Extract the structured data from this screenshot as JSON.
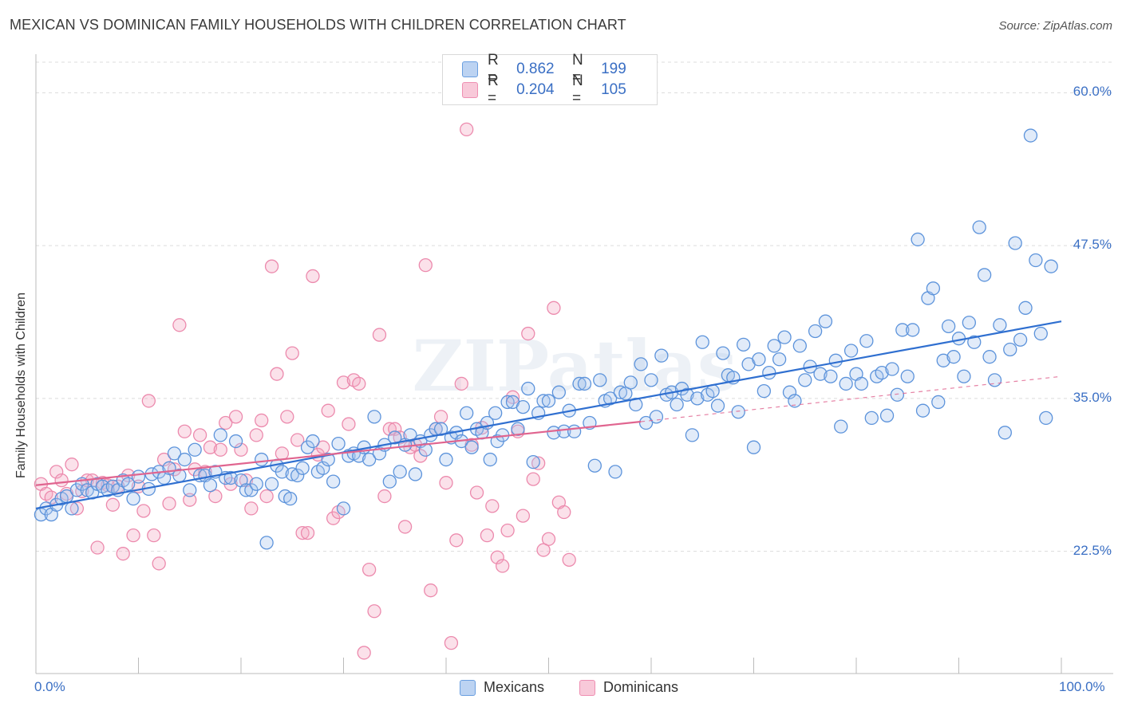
{
  "title": "MEXICAN VS DOMINICAN FAMILY HOUSEHOLDS WITH CHILDREN CORRELATION CHART",
  "source": "Source: ZipAtlas.com",
  "watermark": "ZIPatlas",
  "legend": {
    "r_label": "R =",
    "n_label": "N =",
    "rows": [
      {
        "r": "0.862",
        "n": "199"
      },
      {
        "r": "0.204",
        "n": "105"
      }
    ]
  },
  "chart_data": {
    "type": "scatter",
    "xlabel": "",
    "ylabel": "Family Households with Children",
    "xlim": [
      0,
      100
    ],
    "ylim": [
      12.5,
      62.5
    ],
    "x_tick_labels": [
      "0.0%",
      "100.0%"
    ],
    "y_ticks": [
      22.5,
      35.0,
      47.5,
      60.0
    ],
    "y_tick_labels": [
      "22.5%",
      "35.0%",
      "47.5%",
      "60.0%"
    ],
    "grid": true,
    "legend_position": "top-center",
    "colors": {
      "Mexicans": "#6a9fe0",
      "Dominicans": "#ef8fb2",
      "Mexicans_line": "#2f6fd0",
      "Dominicans_line": "#e0648f"
    },
    "series": [
      {
        "name": "Mexicans",
        "trend": {
          "x": [
            0,
            100
          ],
          "y": [
            26.0,
            41.3
          ]
        },
        "points": [
          [
            0.5,
            25.5
          ],
          [
            1,
            26
          ],
          [
            1.5,
            25.5
          ],
          [
            2,
            26.3
          ],
          [
            2.5,
            26.8
          ],
          [
            3,
            27
          ],
          [
            3.5,
            26
          ],
          [
            4,
            27.5
          ],
          [
            4.5,
            28
          ],
          [
            5,
            27.5
          ],
          [
            5.5,
            27.3
          ],
          [
            6,
            28
          ],
          [
            6.5,
            27.8
          ],
          [
            7,
            27.5
          ],
          [
            7.5,
            27.8
          ],
          [
            8,
            27.5
          ],
          [
            8.5,
            28.3
          ],
          [
            9,
            28
          ],
          [
            9.5,
            26.8
          ],
          [
            10,
            28.6
          ],
          [
            11,
            27.6
          ],
          [
            11.3,
            28.8
          ],
          [
            12,
            29
          ],
          [
            12.5,
            28.5
          ],
          [
            13,
            29.3
          ],
          [
            13.5,
            30.5
          ],
          [
            14,
            28.7
          ],
          [
            14.5,
            30
          ],
          [
            15,
            27.5
          ],
          [
            15.5,
            30.8
          ],
          [
            16,
            28.7
          ],
          [
            16.5,
            28.7
          ],
          [
            17,
            27.9
          ],
          [
            17.5,
            29
          ],
          [
            18,
            32
          ],
          [
            18.5,
            28.5
          ],
          [
            19,
            28.5
          ],
          [
            19.5,
            31.5
          ],
          [
            20,
            28.3
          ],
          [
            20.5,
            27.5
          ],
          [
            21,
            27.5
          ],
          [
            21.5,
            28
          ],
          [
            22,
            30
          ],
          [
            22.5,
            23.2
          ],
          [
            23,
            28
          ],
          [
            23.5,
            29.5
          ],
          [
            24,
            29
          ],
          [
            24.3,
            27
          ],
          [
            24.8,
            26.8
          ],
          [
            25,
            28.8
          ],
          [
            25.5,
            28.7
          ],
          [
            26,
            29.3
          ],
          [
            26.5,
            31
          ],
          [
            27,
            31.5
          ],
          [
            27.5,
            29
          ],
          [
            28,
            29.3
          ],
          [
            28.5,
            30
          ],
          [
            29,
            28.2
          ],
          [
            29.5,
            31.3
          ],
          [
            30,
            26
          ],
          [
            30.5,
            30.3
          ],
          [
            31,
            30.5
          ],
          [
            31.5,
            30.3
          ],
          [
            32,
            31
          ],
          [
            32.5,
            30
          ],
          [
            33,
            33.5
          ],
          [
            33.5,
            30.5
          ],
          [
            34,
            31.2
          ],
          [
            34.5,
            28.2
          ],
          [
            35,
            31.8
          ],
          [
            35.5,
            29
          ],
          [
            36,
            31.2
          ],
          [
            36.5,
            32
          ],
          [
            37,
            28.8
          ],
          [
            37.5,
            31.5
          ],
          [
            38,
            30.8
          ],
          [
            38.5,
            32
          ],
          [
            39,
            32.5
          ],
          [
            39.5,
            32.5
          ],
          [
            40,
            30
          ],
          [
            40.5,
            31.8
          ],
          [
            41,
            32.2
          ],
          [
            41.5,
            31.5
          ],
          [
            42,
            33.8
          ],
          [
            42.5,
            31
          ],
          [
            43,
            32.5
          ],
          [
            43.5,
            32.2
          ],
          [
            44,
            33
          ],
          [
            44.3,
            30
          ],
          [
            44.8,
            33.8
          ],
          [
            45,
            31.5
          ],
          [
            45.5,
            32
          ],
          [
            46,
            34.7
          ],
          [
            46.5,
            34.7
          ],
          [
            47,
            32.5
          ],
          [
            47.5,
            34.3
          ],
          [
            48,
            35.8
          ],
          [
            48.5,
            29.8
          ],
          [
            49,
            33.8
          ],
          [
            49.5,
            34.8
          ],
          [
            50,
            34.8
          ],
          [
            50.5,
            32.2
          ],
          [
            51,
            35.5
          ],
          [
            51.5,
            32.3
          ],
          [
            52,
            34
          ],
          [
            52.5,
            32.3
          ],
          [
            53,
            36.2
          ],
          [
            53.5,
            36.2
          ],
          [
            54,
            33
          ],
          [
            54.5,
            29.5
          ],
          [
            55,
            36.5
          ],
          [
            55.5,
            34.8
          ],
          [
            56,
            35
          ],
          [
            56.5,
            29
          ],
          [
            57,
            35.5
          ],
          [
            57.5,
            35.4
          ],
          [
            58,
            36.3
          ],
          [
            58.5,
            34.5
          ],
          [
            59,
            37.8
          ],
          [
            59.5,
            33
          ],
          [
            60,
            36.5
          ],
          [
            60.5,
            33.5
          ],
          [
            61,
            38.5
          ],
          [
            61.5,
            35.3
          ],
          [
            62,
            35.5
          ],
          [
            62.5,
            34.5
          ],
          [
            63,
            35.8
          ],
          [
            63.5,
            35.3
          ],
          [
            64,
            32
          ],
          [
            64.5,
            35
          ],
          [
            65,
            39.6
          ],
          [
            65.5,
            35.3
          ],
          [
            66,
            35.6
          ],
          [
            66.5,
            34.4
          ],
          [
            67,
            38.7
          ],
          [
            67.5,
            36.9
          ],
          [
            68,
            36.7
          ],
          [
            68.5,
            33.9
          ],
          [
            69,
            39.4
          ],
          [
            69.5,
            37.8
          ],
          [
            70,
            31
          ],
          [
            70.5,
            38.2
          ],
          [
            71,
            35.6
          ],
          [
            71.5,
            37.1
          ],
          [
            72,
            39.3
          ],
          [
            72.5,
            38.2
          ],
          [
            73,
            40
          ],
          [
            73.5,
            35.5
          ],
          [
            74,
            34.8
          ],
          [
            74.5,
            39.3
          ],
          [
            75,
            36.5
          ],
          [
            75.5,
            37.6
          ],
          [
            76,
            40.5
          ],
          [
            76.5,
            37
          ],
          [
            77,
            41.3
          ],
          [
            77.5,
            36.8
          ],
          [
            78,
            38.1
          ],
          [
            78.5,
            32.7
          ],
          [
            79,
            36.2
          ],
          [
            79.5,
            38.9
          ],
          [
            80,
            37
          ],
          [
            80.5,
            36.2
          ],
          [
            81,
            39.7
          ],
          [
            81.5,
            33.4
          ],
          [
            82,
            36.8
          ],
          [
            82.5,
            37.1
          ],
          [
            83,
            33.6
          ],
          [
            83.5,
            37.4
          ],
          [
            84,
            35.3
          ],
          [
            84.5,
            40.6
          ],
          [
            85,
            36.8
          ],
          [
            85.5,
            40.6
          ],
          [
            86,
            48
          ],
          [
            86.5,
            34
          ],
          [
            87,
            43.2
          ],
          [
            87.5,
            44
          ],
          [
            88,
            34.7
          ],
          [
            88.5,
            38.1
          ],
          [
            89,
            40.9
          ],
          [
            89.5,
            38.4
          ],
          [
            90,
            39.9
          ],
          [
            90.5,
            36.8
          ],
          [
            91,
            41.2
          ],
          [
            91.5,
            39.6
          ],
          [
            92,
            49
          ],
          [
            92.5,
            45.1
          ],
          [
            93,
            38.4
          ],
          [
            93.5,
            36.5
          ],
          [
            94,
            41
          ],
          [
            94.5,
            32.2
          ],
          [
            95,
            39
          ],
          [
            95.5,
            47.7
          ],
          [
            96,
            39.8
          ],
          [
            96.5,
            42.4
          ],
          [
            97,
            56.5
          ],
          [
            97.5,
            46.3
          ],
          [
            98,
            40.3
          ],
          [
            98.5,
            33.4
          ],
          [
            99,
            45.8
          ]
        ]
      },
      {
        "name": "Dominicans",
        "trend": {
          "x": [
            0,
            59
          ],
          "y": [
            27.9,
            33.1
          ]
        },
        "trend_extension": {
          "x": [
            59,
            100
          ],
          "y": [
            33.1,
            36.8
          ]
        },
        "points": [
          [
            0.5,
            28
          ],
          [
            1,
            27.2
          ],
          [
            1.5,
            26.9
          ],
          [
            2,
            29
          ],
          [
            2.5,
            28.3
          ],
          [
            3,
            27.2
          ],
          [
            3.5,
            29.6
          ],
          [
            4,
            26
          ],
          [
            4.5,
            27.4
          ],
          [
            5,
            28.3
          ],
          [
            5.5,
            28.3
          ],
          [
            6,
            22.8
          ],
          [
            6.5,
            28.1
          ],
          [
            7,
            27.9
          ],
          [
            7.5,
            26.3
          ],
          [
            8,
            27.8
          ],
          [
            8.5,
            22.3
          ],
          [
            9,
            28.7
          ],
          [
            9.5,
            23.8
          ],
          [
            10,
            27.8
          ],
          [
            10.5,
            25.8
          ],
          [
            11,
            34.8
          ],
          [
            11.5,
            23.8
          ],
          [
            12,
            21.5
          ],
          [
            12.5,
            30
          ],
          [
            13,
            26.4
          ],
          [
            13.5,
            29.2
          ],
          [
            14,
            41
          ],
          [
            14.5,
            32.3
          ],
          [
            15,
            26.7
          ],
          [
            15.5,
            29.2
          ],
          [
            16,
            32
          ],
          [
            16.5,
            29
          ],
          [
            17,
            31
          ],
          [
            17.5,
            27
          ],
          [
            18,
            30.8
          ],
          [
            18.5,
            33
          ],
          [
            19,
            28
          ],
          [
            19.5,
            33.5
          ],
          [
            20,
            30.8
          ],
          [
            20.5,
            28.3
          ],
          [
            21,
            26
          ],
          [
            21.5,
            32
          ],
          [
            22,
            33.2
          ],
          [
            22.5,
            27
          ],
          [
            23,
            45.8
          ],
          [
            23.5,
            37
          ],
          [
            24,
            30.5
          ],
          [
            24.5,
            33.5
          ],
          [
            25,
            38.7
          ],
          [
            25.5,
            31.6
          ],
          [
            26,
            24
          ],
          [
            26.5,
            24
          ],
          [
            27,
            45
          ],
          [
            27.5,
            30.4
          ],
          [
            28,
            31
          ],
          [
            28.5,
            34
          ],
          [
            29,
            25.2
          ],
          [
            29.5,
            25.7
          ],
          [
            30,
            36.3
          ],
          [
            30.5,
            32.9
          ],
          [
            31,
            36.5
          ],
          [
            31.5,
            36.2
          ],
          [
            32,
            14.2
          ],
          [
            32.5,
            21
          ],
          [
            33,
            17.6
          ],
          [
            33.5,
            40.2
          ],
          [
            34,
            27
          ],
          [
            34.5,
            32.5
          ],
          [
            35,
            32.5
          ],
          [
            35.5,
            31.8
          ],
          [
            36,
            24.5
          ],
          [
            36.5,
            31
          ],
          [
            37,
            31.2
          ],
          [
            37.5,
            30.3
          ],
          [
            38,
            45.9
          ],
          [
            38.5,
            19.3
          ],
          [
            39,
            32.5
          ],
          [
            39.5,
            33.5
          ],
          [
            40,
            28.1
          ],
          [
            40.5,
            15
          ],
          [
            41,
            23.4
          ],
          [
            41.5,
            36.2
          ],
          [
            42,
            57
          ],
          [
            42.5,
            31.2
          ],
          [
            43,
            27.3
          ],
          [
            43.5,
            32.6
          ],
          [
            44,
            23.8
          ],
          [
            44.5,
            26.2
          ],
          [
            45,
            22
          ],
          [
            45.5,
            21.3
          ],
          [
            46,
            24.2
          ],
          [
            46.5,
            35.1
          ],
          [
            47,
            32.3
          ],
          [
            47.5,
            25.4
          ],
          [
            48,
            40.3
          ],
          [
            48.5,
            28.4
          ],
          [
            49,
            29.7
          ],
          [
            49.5,
            22.6
          ],
          [
            50,
            23.5
          ],
          [
            50.5,
            42.4
          ],
          [
            51,
            26.5
          ],
          [
            51.5,
            25.7
          ],
          [
            52,
            21.8
          ]
        ]
      }
    ]
  }
}
